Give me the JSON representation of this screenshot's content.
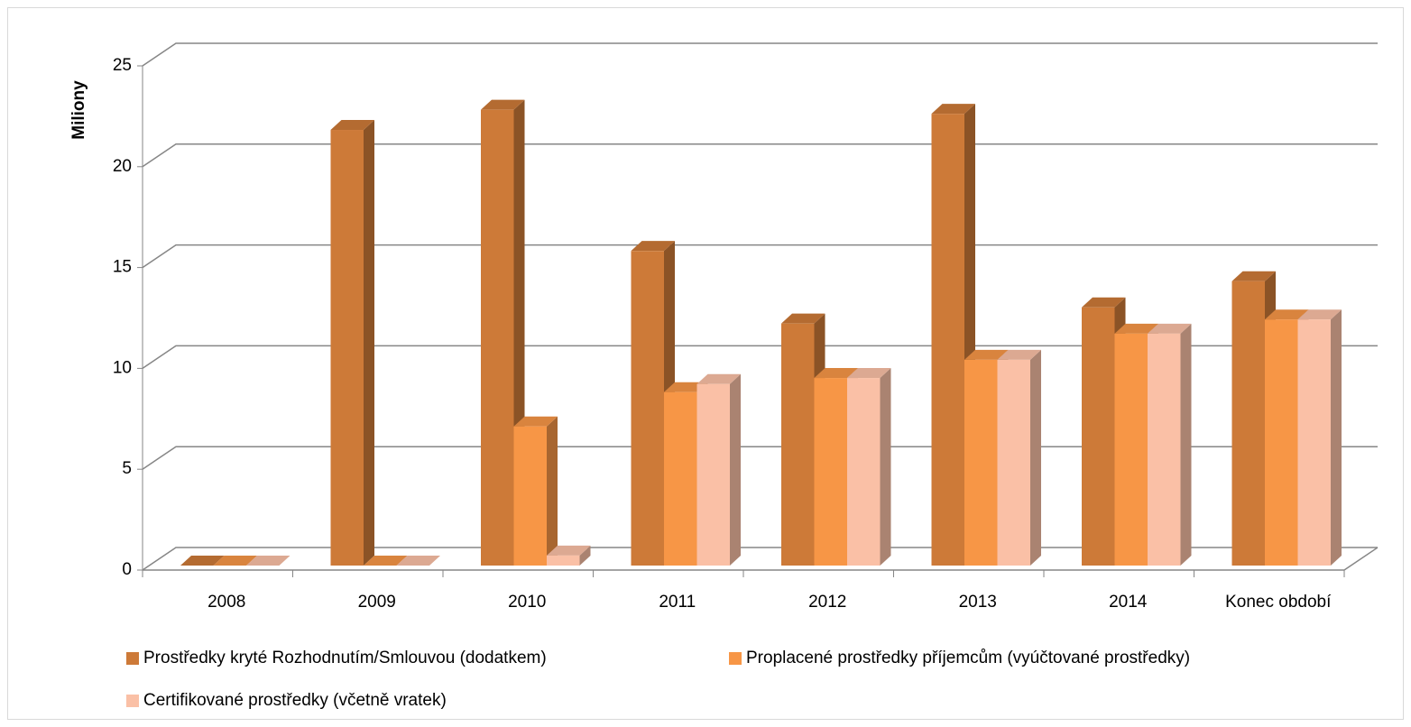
{
  "chart_data": {
    "type": "bar3d",
    "y_axis_label": "Miliony",
    "categories": [
      "2008",
      "2009",
      "2010",
      "2011",
      "2012",
      "2013",
      "2014",
      "Konec období"
    ],
    "series": [
      {
        "name": "Prostředky kryté Rozhodnutím/Smlouvou (dodatkem)",
        "color": "#cd7a38",
        "values": [
          0,
          21.6,
          22.6,
          15.6,
          12.0,
          22.4,
          12.8,
          14.1
        ]
      },
      {
        "name": "Proplacené prostředky příjemcům (vyúčtované prostředky)",
        "color": "#f79646",
        "values": [
          0,
          0,
          6.9,
          8.6,
          9.3,
          10.2,
          11.5,
          12.2
        ]
      },
      {
        "name": "Certifikované prostředky (včetně vratek)",
        "color": "#fac0a6",
        "values": [
          0,
          0,
          0.5,
          9.0,
          9.3,
          10.2,
          11.5,
          12.2
        ]
      }
    ],
    "ylim": [
      0,
      25
    ],
    "yticks": [
      0,
      5,
      10,
      15,
      20,
      25
    ],
    "grid": true,
    "legend": "bottom"
  }
}
